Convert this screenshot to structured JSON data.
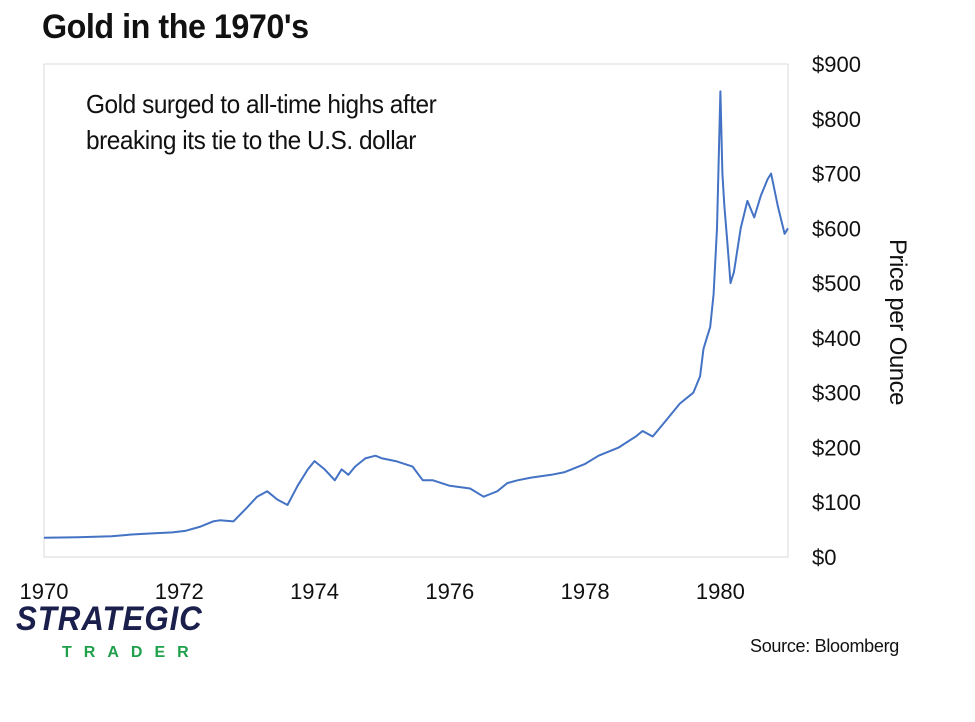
{
  "chart_data": {
    "type": "line",
    "title": "Gold in the 1970's",
    "annotation": "Gold surged to all-time highs after breaking its tie to the U.S. dollar",
    "ylabel": "Price per Ounce",
    "xlabel": "",
    "xlim": [
      1970,
      1981
    ],
    "ylim": [
      0,
      900
    ],
    "y_ticks": [
      "$0",
      "$100",
      "$200",
      "$300",
      "$400",
      "$500",
      "$600",
      "$700",
      "$800",
      "$900"
    ],
    "x_ticks": [
      "1970",
      "1972",
      "1974",
      "1976",
      "1978",
      "1980"
    ],
    "y_axis_side": "right",
    "grid": false,
    "series": [
      {
        "name": "Gold",
        "color": "#4472c4",
        "x": [
          1970.0,
          1970.5,
          1971.0,
          1971.3,
          1971.6,
          1971.9,
          1972.1,
          1972.3,
          1972.5,
          1972.6,
          1972.8,
          1973.0,
          1973.15,
          1973.3,
          1973.45,
          1973.6,
          1973.75,
          1973.9,
          1974.0,
          1974.15,
          1974.3,
          1974.4,
          1974.5,
          1974.6,
          1974.75,
          1974.9,
          1975.0,
          1975.2,
          1975.45,
          1975.6,
          1975.75,
          1976.0,
          1976.3,
          1976.5,
          1976.6,
          1976.7,
          1976.85,
          1977.0,
          1977.2,
          1977.5,
          1977.7,
          1978.0,
          1978.2,
          1978.5,
          1978.75,
          1978.85,
          1979.0,
          1979.2,
          1979.4,
          1979.6,
          1979.7,
          1979.75,
          1979.8,
          1979.85,
          1979.9,
          1979.95,
          1980.0,
          1980.03,
          1980.06,
          1980.1,
          1980.15,
          1980.2,
          1980.3,
          1980.4,
          1980.5,
          1980.6,
          1980.7,
          1980.75,
          1980.85,
          1980.95,
          1981.0
        ],
        "values": [
          35,
          36,
          38,
          41,
          43,
          45,
          48,
          55,
          65,
          67,
          65,
          90,
          110,
          120,
          105,
          95,
          130,
          160,
          175,
          160,
          140,
          160,
          150,
          165,
          180,
          185,
          180,
          175,
          165,
          140,
          140,
          130,
          125,
          110,
          115,
          120,
          135,
          140,
          145,
          150,
          155,
          170,
          185,
          200,
          220,
          230,
          220,
          250,
          280,
          300,
          330,
          380,
          400,
          420,
          480,
          600,
          850,
          700,
          640,
          580,
          500,
          520,
          600,
          650,
          620,
          660,
          690,
          700,
          640,
          590,
          600
        ]
      }
    ]
  },
  "branding": {
    "logo_main": "STRATEGIC",
    "logo_sub": "TRADER",
    "source": "Source: Bloomberg"
  }
}
